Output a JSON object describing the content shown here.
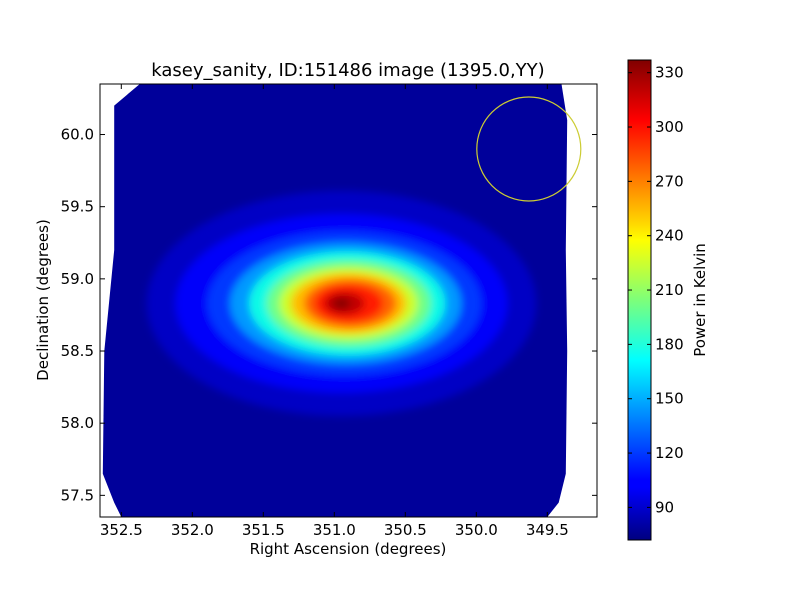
{
  "chart_data": {
    "type": "heatmap",
    "title": "kasey_sanity, ID:151486 image (1395.0,YY)",
    "xlabel": "Right Ascension (degrees)",
    "ylabel": "Declination (degrees)",
    "xlim": [
      352.65,
      349.15
    ],
    "ylim": [
      57.35,
      60.35
    ],
    "xticks": [
      352.5,
      352.0,
      351.5,
      351.0,
      350.5,
      350.0,
      349.5
    ],
    "xtick_labels": [
      "352.5",
      "352.0",
      "351.5",
      "351.0",
      "350.5",
      "350.0",
      "349.5"
    ],
    "yticks": [
      57.5,
      58.0,
      58.5,
      59.0,
      59.5,
      60.0
    ],
    "ytick_labels": [
      "57.5",
      "58.0",
      "58.5",
      "59.0",
      "59.5",
      "60.0"
    ],
    "colorbar": {
      "label": "Power in Kelvin",
      "min": 72,
      "max": 337,
      "ticks": [
        90,
        120,
        150,
        180,
        210,
        240,
        270,
        300,
        330
      ],
      "tick_labels": [
        "90",
        "120",
        "150",
        "180",
        "210",
        "240",
        "270",
        "300",
        "330"
      ],
      "colormap": "jet"
    },
    "source_peak": {
      "ra": 350.95,
      "dec": 58.83,
      "value": 337
    },
    "background_value": 78,
    "footprint": [
      [
        352.37,
        60.35
      ],
      [
        352.55,
        60.2
      ],
      [
        352.55,
        59.2
      ],
      [
        352.62,
        58.5
      ],
      [
        352.63,
        57.65
      ],
      [
        352.55,
        57.45
      ],
      [
        352.5,
        57.35
      ],
      [
        349.5,
        57.35
      ],
      [
        349.42,
        57.45
      ],
      [
        349.37,
        57.65
      ],
      [
        349.36,
        58.5
      ],
      [
        349.37,
        59.2
      ],
      [
        349.36,
        60.1
      ],
      [
        349.4,
        60.35
      ]
    ],
    "annotation": {
      "type": "circle",
      "ra": 349.63,
      "dec": 59.9,
      "radius_deg": 0.36,
      "color": "#cccc33"
    }
  }
}
